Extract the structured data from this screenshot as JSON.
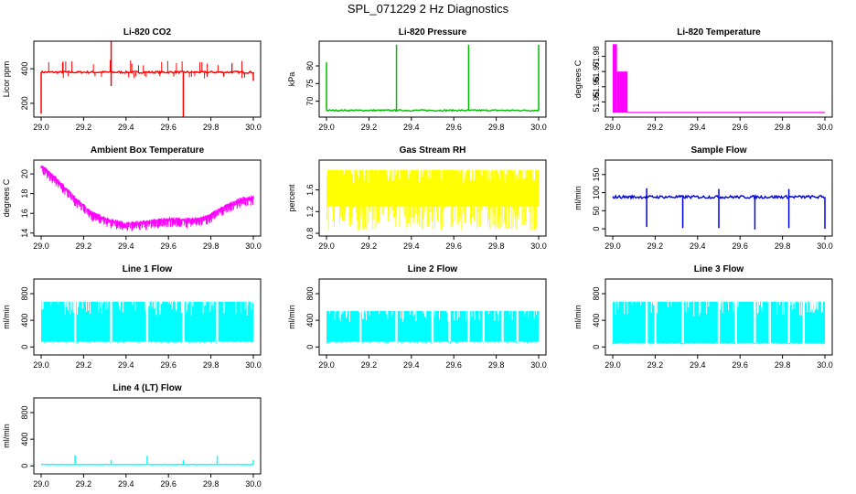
{
  "figure_title": "SPL_071229  2 Hz Diagnostics",
  "chart_data": [
    {
      "type": "line",
      "title": "Li-820 CO2",
      "ylabel": "Licor ppm",
      "color": "#ff0000",
      "xlim": [
        29.0,
        30.0
      ],
      "ylim": [
        120,
        560
      ],
      "x_ticks": [
        "29.0",
        "29.2",
        "29.4",
        "29.6",
        "29.8",
        "30.0"
      ],
      "y_ticks": [
        "200",
        "400"
      ],
      "y_tick_values": [
        200,
        400
      ],
      "pattern": "spiky",
      "baseline": 380,
      "noise": 6,
      "up_spikes_to": 450,
      "down_spikes_to": 340,
      "events": [
        {
          "x": 29.0,
          "y": 140
        },
        {
          "x": 29.33,
          "y": 560
        },
        {
          "x": 29.33,
          "y": 300
        },
        {
          "x": 29.67,
          "y": 120
        },
        {
          "x": 30.0,
          "y": 330
        }
      ]
    },
    {
      "type": "line",
      "title": "Li-820 Pressure",
      "ylabel": "kPa",
      "color": "#00bb00",
      "xlim": [
        29.0,
        30.0
      ],
      "ylim": [
        65.5,
        87
      ],
      "x_ticks": [
        "29.0",
        "29.2",
        "29.4",
        "29.6",
        "29.8",
        "30.0"
      ],
      "y_ticks": [
        "70",
        "75",
        "80"
      ],
      "y_tick_values": [
        70,
        75,
        80
      ],
      "pattern": "spiky",
      "baseline": 67.4,
      "noise": 0.2,
      "events": [
        {
          "x": 29.0,
          "y": 81
        },
        {
          "x": 29.33,
          "y": 86
        },
        {
          "x": 29.67,
          "y": 86
        },
        {
          "x": 30.0,
          "y": 86
        }
      ]
    },
    {
      "type": "line",
      "title": "Li-820 Temperature",
      "ylabel": "degrees C",
      "color": "#ff00ff",
      "xlim": [
        29.0,
        30.0
      ],
      "ylim": [
        51.94,
        51.99
      ],
      "x_ticks": [
        "29.0",
        "29.2",
        "29.4",
        "29.6",
        "29.8",
        "30.0"
      ],
      "y_ticks": [
        "51.95",
        "51.96",
        "51.97",
        "51.98"
      ],
      "y_tick_values": [
        51.95,
        51.96,
        51.97,
        51.98
      ],
      "pattern": "step",
      "steps": [
        {
          "x0": 29.0,
          "x1": 29.02,
          "lo": 51.943,
          "hi": 51.988
        },
        {
          "x0": 29.02,
          "x1": 29.07,
          "lo": 51.943,
          "hi": 51.97
        },
        {
          "x0": 29.07,
          "x1": 30.0,
          "lo": 51.943,
          "hi": 51.943
        }
      ]
    },
    {
      "type": "line",
      "title": "Ambient Box Temperature",
      "ylabel": "degrees C",
      "color": "#ff00ff",
      "xlim": [
        29.0,
        30.0
      ],
      "ylim": [
        13.7,
        21.4
      ],
      "x_ticks": [
        "29.0",
        "29.2",
        "29.4",
        "29.6",
        "29.8",
        "30.0"
      ],
      "y_ticks": [
        "14",
        "16",
        "18",
        "20"
      ],
      "y_tick_values": [
        14,
        16,
        18,
        20
      ],
      "pattern": "curve",
      "noise": 0.8,
      "points": [
        [
          29.0,
          20.8
        ],
        [
          29.08,
          19.3
        ],
        [
          29.16,
          17.5
        ],
        [
          29.24,
          16.0
        ],
        [
          29.32,
          15.3
        ],
        [
          29.4,
          14.9
        ],
        [
          29.5,
          15.1
        ],
        [
          29.6,
          15.4
        ],
        [
          29.7,
          15.3
        ],
        [
          29.78,
          15.6
        ],
        [
          29.86,
          16.6
        ],
        [
          29.94,
          17.4
        ],
        [
          30.0,
          17.6
        ]
      ]
    },
    {
      "type": "line",
      "title": "Gas Stream RH",
      "ylabel": "percent",
      "color": "#ffff00",
      "xlim": [
        29.0,
        30.0
      ],
      "ylim": [
        0.75,
        2.15
      ],
      "x_ticks": [
        "29.0",
        "29.2",
        "29.4",
        "29.6",
        "29.8",
        "30.0"
      ],
      "y_ticks": [
        "0.8",
        "1.2",
        "1.6"
      ],
      "y_tick_values": [
        0.8,
        1.2,
        1.6
      ],
      "pattern": "band",
      "band_top": 1.97,
      "band_bottom": 1.3,
      "band_min": 0.85
    },
    {
      "type": "line",
      "title": "Sample Flow",
      "ylabel": "ml/min",
      "color": "#0000dd",
      "xlim": [
        29.0,
        30.0
      ],
      "ylim": [
        -20,
        190
      ],
      "x_ticks": [
        "29.0",
        "29.2",
        "29.4",
        "29.6",
        "29.8",
        "30.0"
      ],
      "y_ticks": [
        "0",
        "50",
        "100",
        "150"
      ],
      "y_tick_values": [
        0,
        50,
        100,
        150
      ],
      "pattern": "spiky",
      "baseline": 88,
      "noise": 4,
      "events": [
        {
          "x": 29.16,
          "y": 5
        },
        {
          "x": 29.16,
          "y": 112
        },
        {
          "x": 29.33,
          "y": 2
        },
        {
          "x": 29.5,
          "y": 2
        },
        {
          "x": 29.5,
          "y": 110
        },
        {
          "x": 29.67,
          "y": -2
        },
        {
          "x": 29.83,
          "y": 2
        },
        {
          "x": 29.83,
          "y": 110
        },
        {
          "x": 30.0,
          "y": 0
        }
      ]
    },
    {
      "type": "line",
      "title": "Line 1 Flow",
      "ylabel": "ml/min",
      "color": "#00ffff",
      "xlim": [
        29.0,
        30.0
      ],
      "ylim": [
        -120,
        1020
      ],
      "x_ticks": [
        "29.0",
        "29.2",
        "29.4",
        "29.6",
        "29.8",
        "30.0"
      ],
      "y_ticks": [
        "0",
        "400",
        "800"
      ],
      "y_tick_values": [
        0,
        400,
        800
      ],
      "pattern": "band",
      "band_top": 680,
      "band_bottom": 80,
      "band_min": 60,
      "gaps": [
        29.16,
        29.33,
        29.5,
        29.67,
        29.83
      ]
    },
    {
      "type": "line",
      "title": "Line 2 Flow",
      "ylabel": "ml/min",
      "color": "#00ffff",
      "xlim": [
        29.0,
        30.0
      ],
      "ylim": [
        -120,
        1020
      ],
      "x_ticks": [
        "29.0",
        "29.2",
        "29.4",
        "29.6",
        "29.8",
        "30.0"
      ],
      "y_ticks": [
        "0",
        "400",
        "800"
      ],
      "y_tick_values": [
        0,
        400,
        800
      ],
      "pattern": "band",
      "band_top": 540,
      "band_bottom": 80,
      "band_min": 60,
      "gaps": [
        29.16,
        29.33,
        29.5,
        29.58,
        29.67,
        29.74,
        29.83,
        29.9
      ]
    },
    {
      "type": "line",
      "title": "Line 3 Flow",
      "ylabel": "ml/min",
      "color": "#00ffff",
      "xlim": [
        29.0,
        30.0
      ],
      "ylim": [
        -120,
        1020
      ],
      "x_ticks": [
        "29.0",
        "29.2",
        "29.4",
        "29.6",
        "29.8",
        "30.0"
      ],
      "y_ticks": [
        "0",
        "400",
        "800"
      ],
      "y_tick_values": [
        0,
        400,
        800
      ],
      "pattern": "band",
      "band_top": 680,
      "band_bottom": 60,
      "band_min": 40,
      "gaps": [
        29.16,
        29.2,
        29.33,
        29.5,
        29.58,
        29.67,
        29.74,
        29.83,
        29.9
      ]
    },
    {
      "type": "line",
      "title": "Line 4 (LT) Flow",
      "ylabel": "ml/min",
      "color": "#00ffff",
      "xlim": [
        29.0,
        30.0
      ],
      "ylim": [
        -120,
        1020
      ],
      "x_ticks": [
        "29.0",
        "29.2",
        "29.4",
        "29.6",
        "29.8",
        "30.0"
      ],
      "y_ticks": [
        "0",
        "400",
        "800"
      ],
      "y_tick_values": [
        0,
        400,
        800
      ],
      "pattern": "spiky",
      "baseline": 20,
      "noise": 3,
      "events": [
        {
          "x": 29.16,
          "y": 160
        },
        {
          "x": 29.33,
          "y": 90
        },
        {
          "x": 29.5,
          "y": 150
        },
        {
          "x": 29.67,
          "y": 90
        },
        {
          "x": 29.83,
          "y": 150
        },
        {
          "x": 30.0,
          "y": 90
        }
      ]
    }
  ]
}
